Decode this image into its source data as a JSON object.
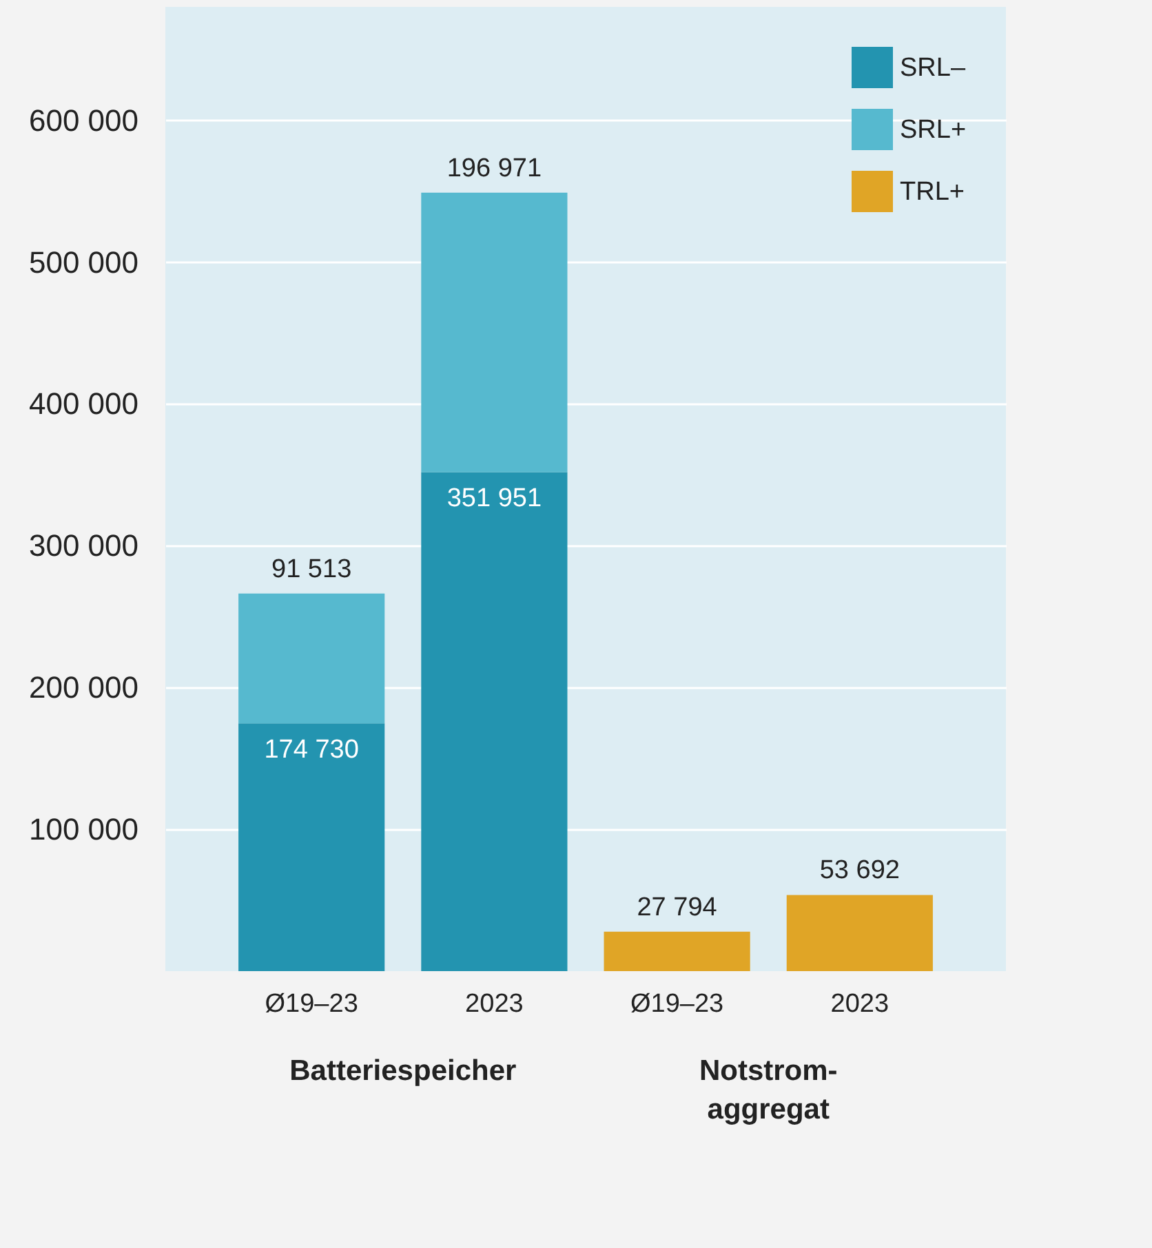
{
  "chart_data": {
    "type": "bar",
    "stacked": true,
    "categories": [
      "Ø19–23",
      "2023",
      "Ø19–23",
      "2023"
    ],
    "series": [
      {
        "name": "SRL–",
        "color": "#2394b0",
        "values": [
          174730,
          351951,
          null,
          null
        ],
        "value_labels": [
          "174 730",
          "351 951",
          null,
          null
        ]
      },
      {
        "name": "SRL+",
        "color": "#56b9cf",
        "values": [
          91513,
          196971,
          null,
          null
        ],
        "value_labels": [
          "91 513",
          "196 971",
          null,
          null
        ]
      },
      {
        "name": "TRL+",
        "color": "#e0a526",
        "values": [
          null,
          null,
          27794,
          53692
        ],
        "value_labels": [
          null,
          null,
          "27 794",
          "53 692"
        ]
      }
    ],
    "ylim": [
      0,
      680000
    ],
    "yticks": [
      {
        "value": 100000,
        "label": "100 000"
      },
      {
        "value": 200000,
        "label": "200 000"
      },
      {
        "value": 300000,
        "label": "300 000"
      },
      {
        "value": 400000,
        "label": "400 000"
      },
      {
        "value": 500000,
        "label": "500 000"
      },
      {
        "value": 600000,
        "label": "600 000"
      }
    ],
    "grid": "y",
    "legend": "top right",
    "annotations": [
      "Batteriespeicher",
      "Notstrom-aggregat"
    ]
  }
}
